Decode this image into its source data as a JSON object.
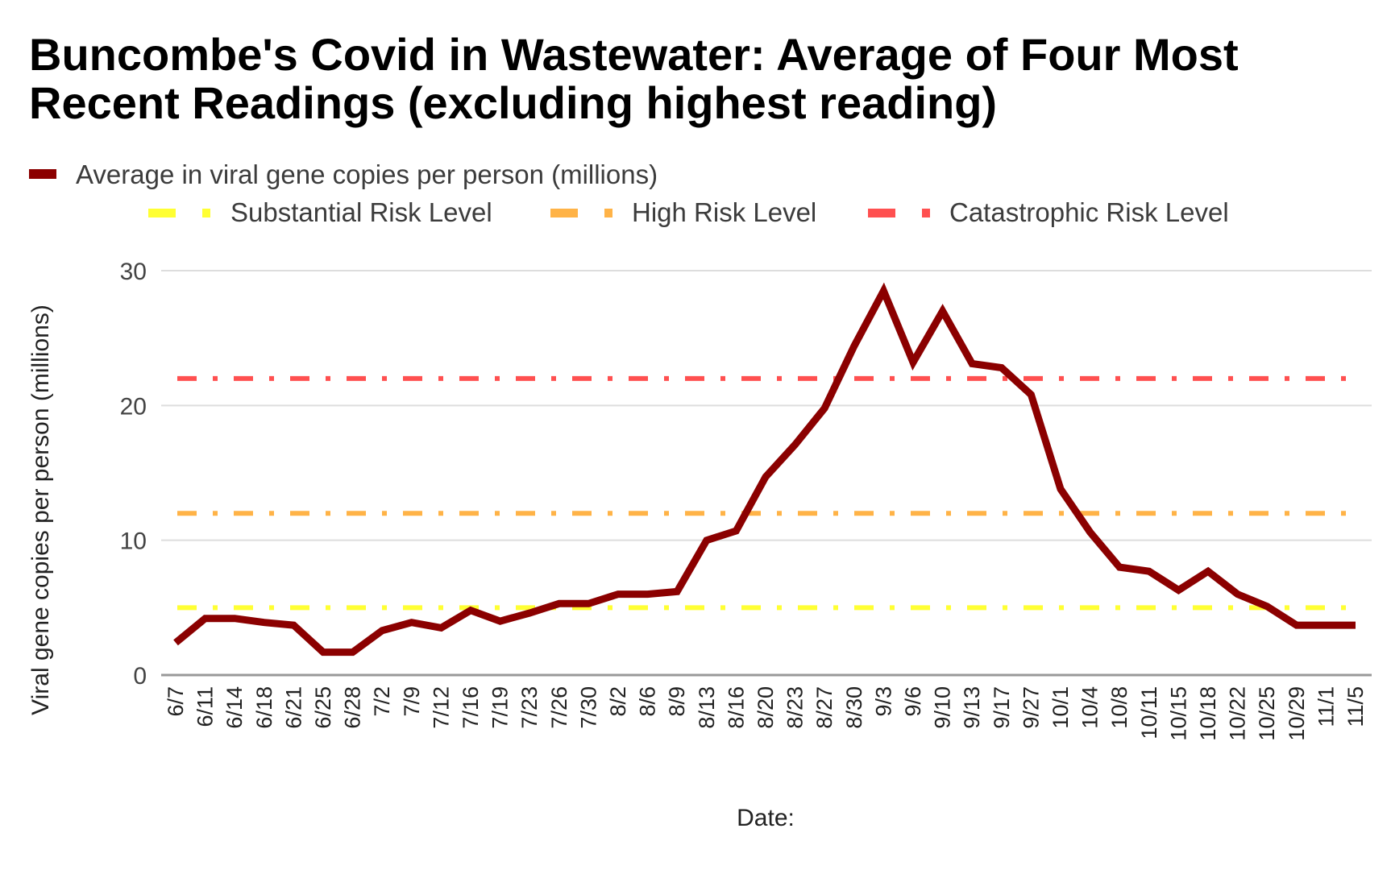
{
  "chart_data": {
    "type": "line",
    "title": "Buncombe's Covid in Wastewater: Average of Four Most Recent Readings (excluding highest reading)",
    "xlabel": "Date:",
    "ylabel": "Viral gene copies per person (millions)",
    "ylim": [
      0,
      30
    ],
    "yticks": [
      0,
      10,
      20,
      30
    ],
    "ytick_labels": [
      "0",
      "10",
      "20",
      "30"
    ],
    "grid": true,
    "legend_position": "top",
    "categories": [
      "6/7",
      "6/11",
      "6/14",
      "6/18",
      "6/21",
      "6/25",
      "6/28",
      "7/2",
      "7/9",
      "7/12",
      "7/16",
      "7/19",
      "7/23",
      "7/26",
      "7/30",
      "8/2",
      "8/6",
      "8/9",
      "8/13",
      "8/16",
      "8/20",
      "8/23",
      "8/27",
      "8/30",
      "9/3",
      "9/6",
      "9/10",
      "9/13",
      "9/17",
      "9/27",
      "10/1",
      "10/4",
      "10/8",
      "10/11",
      "10/15",
      "10/18",
      "10/22",
      "10/25",
      "10/29",
      "11/1",
      "11/5"
    ],
    "series": [
      {
        "name": "Average in viral gene copies per person (millions)",
        "color": "#8b0000",
        "style": "solid",
        "values": [
          2.4,
          4.2,
          4.2,
          3.9,
          3.7,
          1.7,
          1.7,
          3.3,
          3.9,
          3.5,
          4.8,
          4.0,
          4.6,
          5.3,
          5.3,
          6.0,
          6.0,
          6.2,
          10.0,
          10.7,
          14.7,
          17.1,
          19.8,
          24.4,
          28.5,
          23.2,
          27.0,
          23.1,
          22.8,
          20.8,
          13.8,
          10.6,
          8.0,
          7.7,
          6.3,
          7.7,
          6.0,
          5.1,
          3.7,
          3.7,
          3.7
        ]
      }
    ],
    "reference_lines": [
      {
        "name": "Substantial Risk Level",
        "value": 5,
        "color": "#ffff33",
        "style": "dash-dot"
      },
      {
        "name": "High Risk Level",
        "value": 12,
        "color": "#ffb347",
        "style": "dash-dot"
      },
      {
        "name": "Catastrophic Risk Level",
        "value": 22,
        "color": "#ff5050",
        "style": "dash-dot"
      }
    ],
    "colors": {
      "gridline": "#dddddd",
      "baseline": "#999999"
    }
  }
}
